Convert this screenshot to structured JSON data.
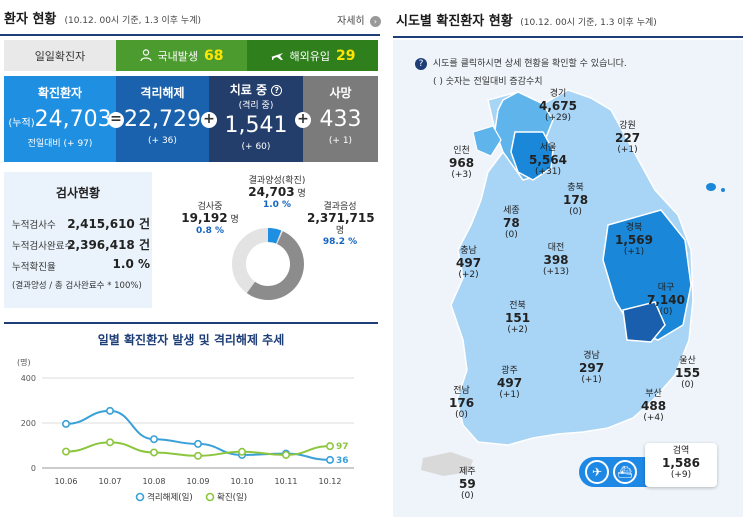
{
  "left_header": {
    "title": "환자 현황",
    "subtitle": "(10.12. 00시 기준, 1.3 이후 누계)",
    "more_label": "자세히"
  },
  "daily": {
    "label": "일일확진자",
    "domestic_label": "국내발생",
    "domestic_value": "68",
    "overseas_label": "해외유입",
    "overseas_value": "29"
  },
  "stats": {
    "confirmed": {
      "label": "확진환자",
      "prefix": "(누적)",
      "value": "24,703",
      "delta": "전일대비 (+ 97)"
    },
    "released": {
      "label": "격리해제",
      "value": "22,729",
      "delta": "(+ 36)"
    },
    "treatment": {
      "label": "치료 중",
      "sublabel": "(격리 중)",
      "value": "1,541",
      "delta": "(+ 60)"
    },
    "deaths": {
      "label": "사망",
      "value": "433",
      "delta": "(+ 1)"
    }
  },
  "test": {
    "title": "검사현황",
    "rows": [
      {
        "label": "누적검사수",
        "value": "2,415,610 건"
      },
      {
        "label": "누적검사완료수",
        "value": "2,396,418 건"
      },
      {
        "label": "누적확진율",
        "value": "1.0 %"
      }
    ],
    "note": "(결과양성 / 총 검사완료수 * 100%)",
    "donut": {
      "testing": {
        "label": "검사중",
        "value": "19,192",
        "unit": "명",
        "pct": "0.8 %",
        "fraction": 0.008
      },
      "positive": {
        "label": "결과양성(확진)",
        "value": "24,703",
        "unit": "명",
        "pct": "1.0 %",
        "fraction": 0.01
      },
      "negative": {
        "label": "결과음성",
        "value": "2,371,715",
        "unit": "명",
        "pct": "98.2 %",
        "fraction": 0.982
      }
    }
  },
  "chart_title": "일별 확진환자 발생 및 격리해제 추세",
  "chart_data": {
    "type": "line",
    "ylabel": "(명)",
    "ylim": [
      0,
      400
    ],
    "yticks": [
      0,
      200,
      400
    ],
    "categories": [
      "10.06",
      "10.07",
      "10.08",
      "10.09",
      "10.10",
      "10.11",
      "10.12"
    ],
    "series": [
      {
        "name": "격리해제(일)",
        "color": "#3aa0d8",
        "values": [
          196,
          254,
          128,
          107,
          58,
          64,
          36
        ],
        "end_label": "36"
      },
      {
        "name": "확진(일)",
        "color": "#8cc63f",
        "values": [
          73,
          114,
          69,
          54,
          72,
          58,
          97
        ],
        "end_label": "97"
      }
    ]
  },
  "right_header": {
    "title": "시도별 확진환자 현황",
    "subtitle": "(10.12. 00시 기준, 1.3 이후 누계)"
  },
  "map_info": {
    "line1": "시도를 클릭하시면 상세 현황을 확인할 수 있습니다.",
    "line2": "( ) 숫자는 전일대비 증감수치"
  },
  "regions": [
    {
      "key": "gyeonggi",
      "name": "경기",
      "value": "4,675",
      "delta": "(+29)"
    },
    {
      "key": "gangwon",
      "name": "강원",
      "value": "227",
      "delta": "(+1)"
    },
    {
      "key": "incheon",
      "name": "인천",
      "value": "968",
      "delta": "(+3)"
    },
    {
      "key": "seoul",
      "name": "서울",
      "value": "5,564",
      "delta": "(+31)"
    },
    {
      "key": "chungbuk",
      "name": "충북",
      "value": "178",
      "delta": "(0)"
    },
    {
      "key": "sejong",
      "name": "세종",
      "value": "78",
      "delta": "(0)"
    },
    {
      "key": "gyeongbuk",
      "name": "경북",
      "value": "1,569",
      "delta": "(+1)"
    },
    {
      "key": "chungnam",
      "name": "충남",
      "value": "497",
      "delta": "(+2)"
    },
    {
      "key": "daejeon",
      "name": "대전",
      "value": "398",
      "delta": "(+13)"
    },
    {
      "key": "daegu",
      "name": "대구",
      "value": "7,140",
      "delta": "(0)"
    },
    {
      "key": "jeonbuk",
      "name": "전북",
      "value": "151",
      "delta": "(+2)"
    },
    {
      "key": "ulsan",
      "name": "울산",
      "value": "155",
      "delta": "(0)"
    },
    {
      "key": "gyeongnam",
      "name": "경남",
      "value": "297",
      "delta": "(+1)"
    },
    {
      "key": "jeonnam",
      "name": "전남",
      "value": "176",
      "delta": "(0)"
    },
    {
      "key": "gwangju",
      "name": "광주",
      "value": "497",
      "delta": "(+1)"
    },
    {
      "key": "busan",
      "name": "부산",
      "value": "488",
      "delta": "(+4)"
    },
    {
      "key": "jeju",
      "name": "제주",
      "value": "59",
      "delta": "(0)"
    },
    {
      "key": "quarantine",
      "name": "검역",
      "value": "1,586",
      "delta": "(+9)"
    }
  ],
  "colors": {
    "navy": "#1d3e77",
    "blue": "#1e8fe1",
    "green": "#4c9b2e",
    "map_light": "#a8d4f5",
    "map_mid": "#5fb4ec",
    "map_dark": "#1a87d8"
  },
  "icons": [
    "person-icon",
    "plane-icon",
    "question-icon",
    "arrow-right-icon",
    "airplane-icon",
    "ship-icon"
  ]
}
